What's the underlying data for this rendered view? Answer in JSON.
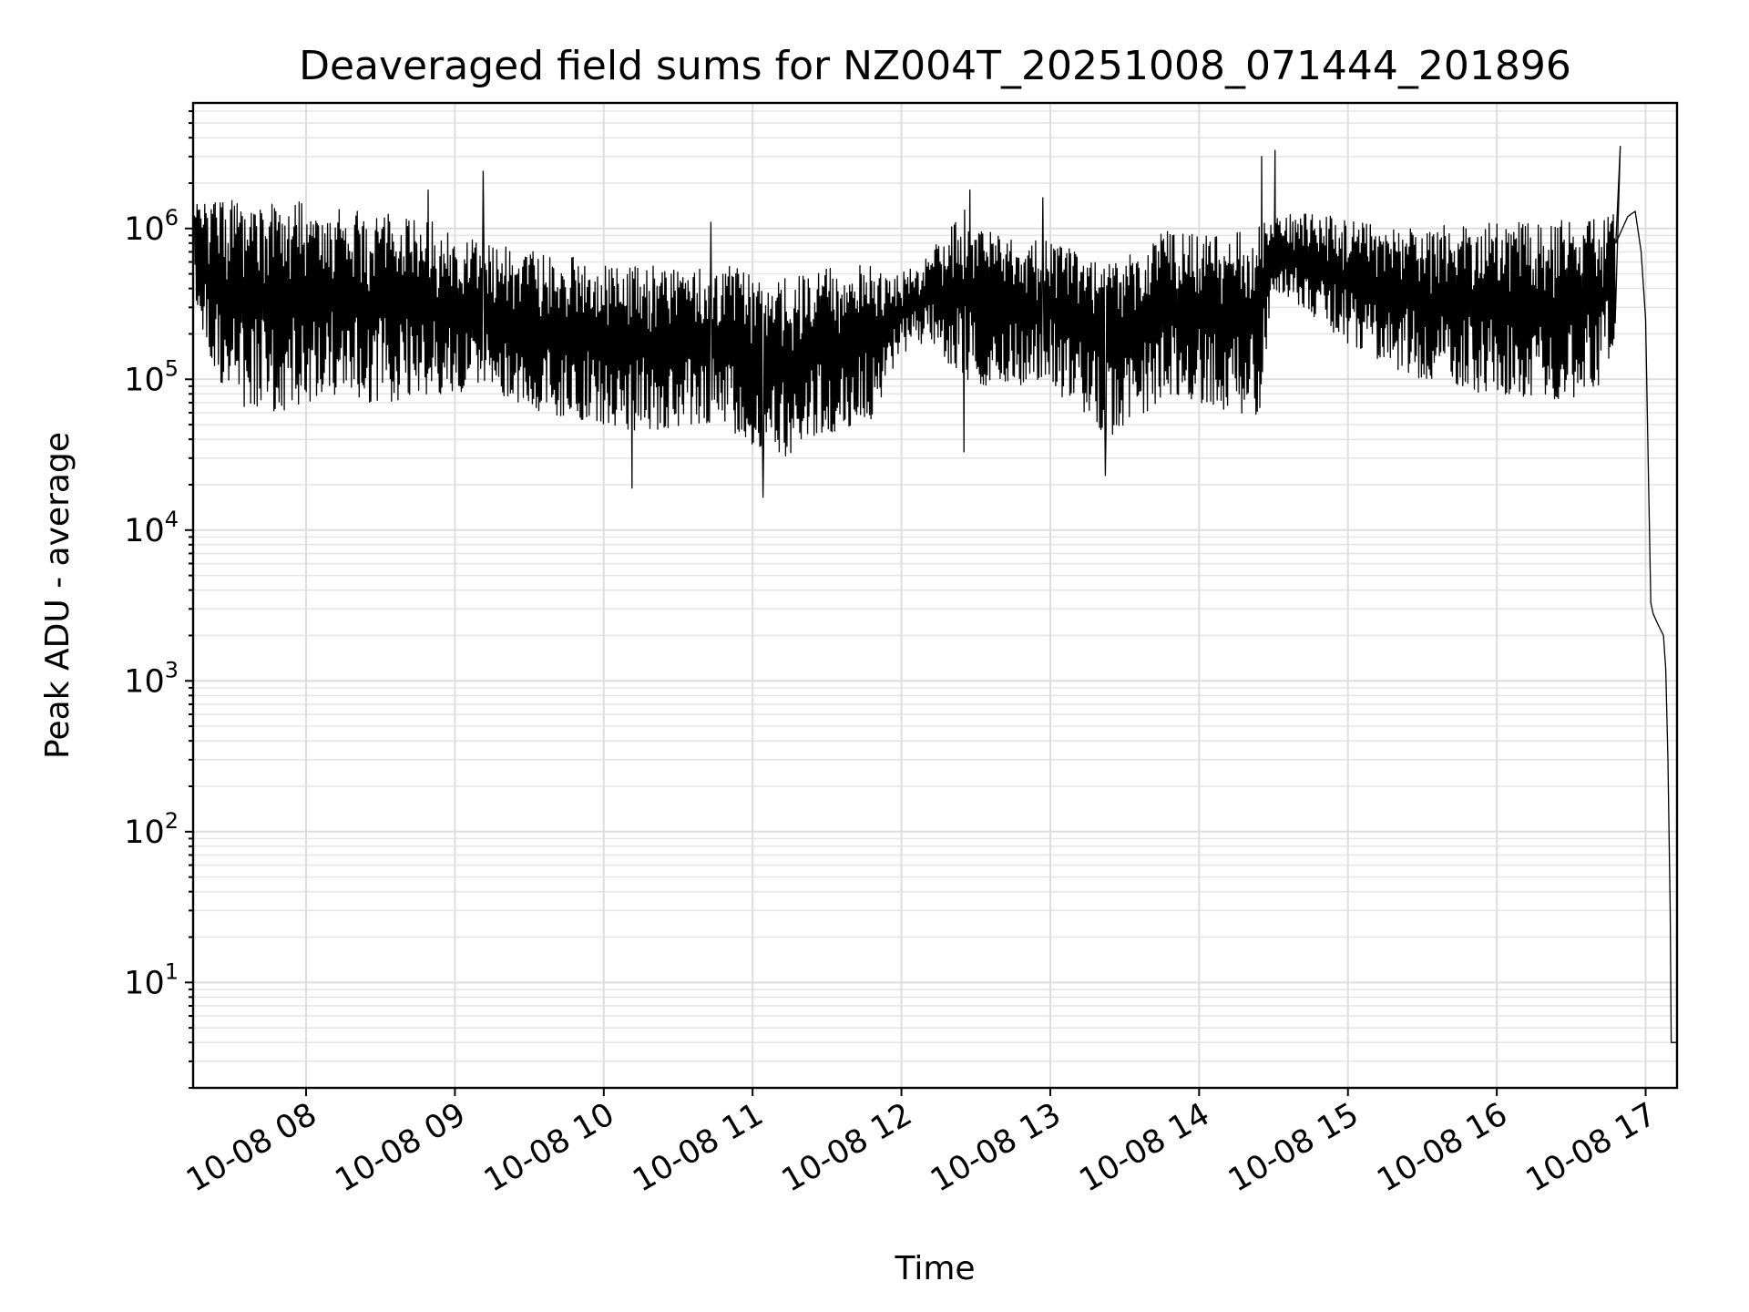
{
  "chart_data": {
    "type": "line",
    "title": "Deaveraged field sums for NZ004T_20251008_071444_201896",
    "xlabel": "Time",
    "ylabel": "Peak ADU - average",
    "yscale": "log",
    "ylim": [
      2,
      6800000
    ],
    "xlim_hours": [
      7.241,
      17.211
    ],
    "grid": true,
    "x_ticks": [
      {
        "hour": 8,
        "label": "10-08 08"
      },
      {
        "hour": 9,
        "label": "10-08 09"
      },
      {
        "hour": 10,
        "label": "10-08 10"
      },
      {
        "hour": 11,
        "label": "10-08 11"
      },
      {
        "hour": 12,
        "label": "10-08 12"
      },
      {
        "hour": 13,
        "label": "10-08 13"
      },
      {
        "hour": 14,
        "label": "10-08 14"
      },
      {
        "hour": 15,
        "label": "10-08 15"
      },
      {
        "hour": 16,
        "label": "10-08 16"
      },
      {
        "hour": 17,
        "label": "10-08 17"
      }
    ],
    "y_ticks": [
      {
        "value": 10,
        "base": "10",
        "exp": "1"
      },
      {
        "value": 100,
        "base": "10",
        "exp": "2"
      },
      {
        "value": 1000,
        "base": "10",
        "exp": "3"
      },
      {
        "value": 10000,
        "base": "10",
        "exp": "4"
      },
      {
        "value": 100000,
        "base": "10",
        "exp": "5"
      },
      {
        "value": 1000000,
        "base": "10",
        "exp": "6"
      }
    ],
    "series": [
      {
        "name": "Peak ADU - average",
        "color": "#000000",
        "envelope_note": "dense noisy trace; x in hours of 2025-10-08, y_lo/y_hi are lower/upper envelope",
        "x": [
          7.25,
          7.4,
          7.6,
          7.8,
          8.0,
          8.2,
          8.4,
          8.6,
          8.8,
          9.0,
          9.2,
          9.4,
          9.6,
          9.8,
          10.0,
          10.2,
          10.4,
          10.6,
          10.8,
          11.0,
          11.2,
          11.4,
          11.6,
          11.8,
          12.0,
          12.2,
          12.4,
          12.6,
          12.8,
          13.0,
          13.2,
          13.4,
          13.6,
          13.8,
          14.0,
          14.2,
          14.4,
          14.5,
          14.7,
          14.9,
          15.1,
          15.3,
          15.5,
          15.7,
          15.9,
          16.1,
          16.3,
          16.5,
          16.7,
          16.8
        ],
        "y_lo": [
          300000,
          100000,
          60000,
          60000,
          70000,
          80000,
          70000,
          70000,
          80000,
          80000,
          90000,
          70000,
          60000,
          55000,
          50000,
          45000,
          45000,
          50000,
          50000,
          35000,
          30000,
          40000,
          45000,
          55000,
          150000,
          180000,
          100000,
          90000,
          90000,
          90000,
          60000,
          40000,
          50000,
          80000,
          70000,
          60000,
          55000,
          400000,
          300000,
          200000,
          150000,
          120000,
          100000,
          90000,
          80000,
          80000,
          70000,
          75000,
          90000,
          200000
        ],
        "y_hi": [
          1500000,
          1600000,
          1600000,
          1500000,
          1500000,
          1400000,
          1300000,
          1250000,
          1200000,
          900000,
          800000,
          750000,
          700000,
          650000,
          600000,
          580000,
          560000,
          550000,
          600000,
          500000,
          480000,
          520000,
          560000,
          580000,
          500000,
          700000,
          1400000,
          1000000,
          800000,
          900000,
          700000,
          600000,
          800000,
          1000000,
          900000,
          1000000,
          1100000,
          1200000,
          1300000,
          1200000,
          1100000,
          1000000,
          1000000,
          1100000,
          1100000,
          1100000,
          1100000,
          1150000,
          1200000,
          1300000
        ],
        "spikes": [
          {
            "x": 8.82,
            "y": 1800000
          },
          {
            "x": 9.19,
            "y": 2400000
          },
          {
            "x": 10.72,
            "y": 1100000
          },
          {
            "x": 12.46,
            "y": 1800000
          },
          {
            "x": 12.95,
            "y": 1600000
          },
          {
            "x": 14.42,
            "y": 3000000
          },
          {
            "x": 14.51,
            "y": 3300000
          },
          {
            "x": 16.83,
            "y": 3500000
          }
        ],
        "dips": [
          {
            "x": 10.19,
            "y": 19000
          },
          {
            "x": 11.07,
            "y": 16500
          },
          {
            "x": 13.37,
            "y": 23000
          },
          {
            "x": 12.42,
            "y": 33000
          }
        ],
        "tail": [
          {
            "x": 16.8,
            "y": 800000
          },
          {
            "x": 16.88,
            "y": 1200000
          },
          {
            "x": 16.93,
            "y": 1300000
          },
          {
            "x": 16.97,
            "y": 700000
          },
          {
            "x": 17.0,
            "y": 250000
          },
          {
            "x": 17.02,
            "y": 20000
          },
          {
            "x": 17.035,
            "y": 3300
          },
          {
            "x": 17.05,
            "y": 2800
          },
          {
            "x": 17.08,
            "y": 2400
          },
          {
            "x": 17.12,
            "y": 2000
          },
          {
            "x": 17.135,
            "y": 1200
          },
          {
            "x": 17.15,
            "y": 300
          },
          {
            "x": 17.165,
            "y": 30
          },
          {
            "x": 17.172,
            "y": 4
          },
          {
            "x": 17.211,
            "y": 4
          }
        ]
      }
    ]
  }
}
